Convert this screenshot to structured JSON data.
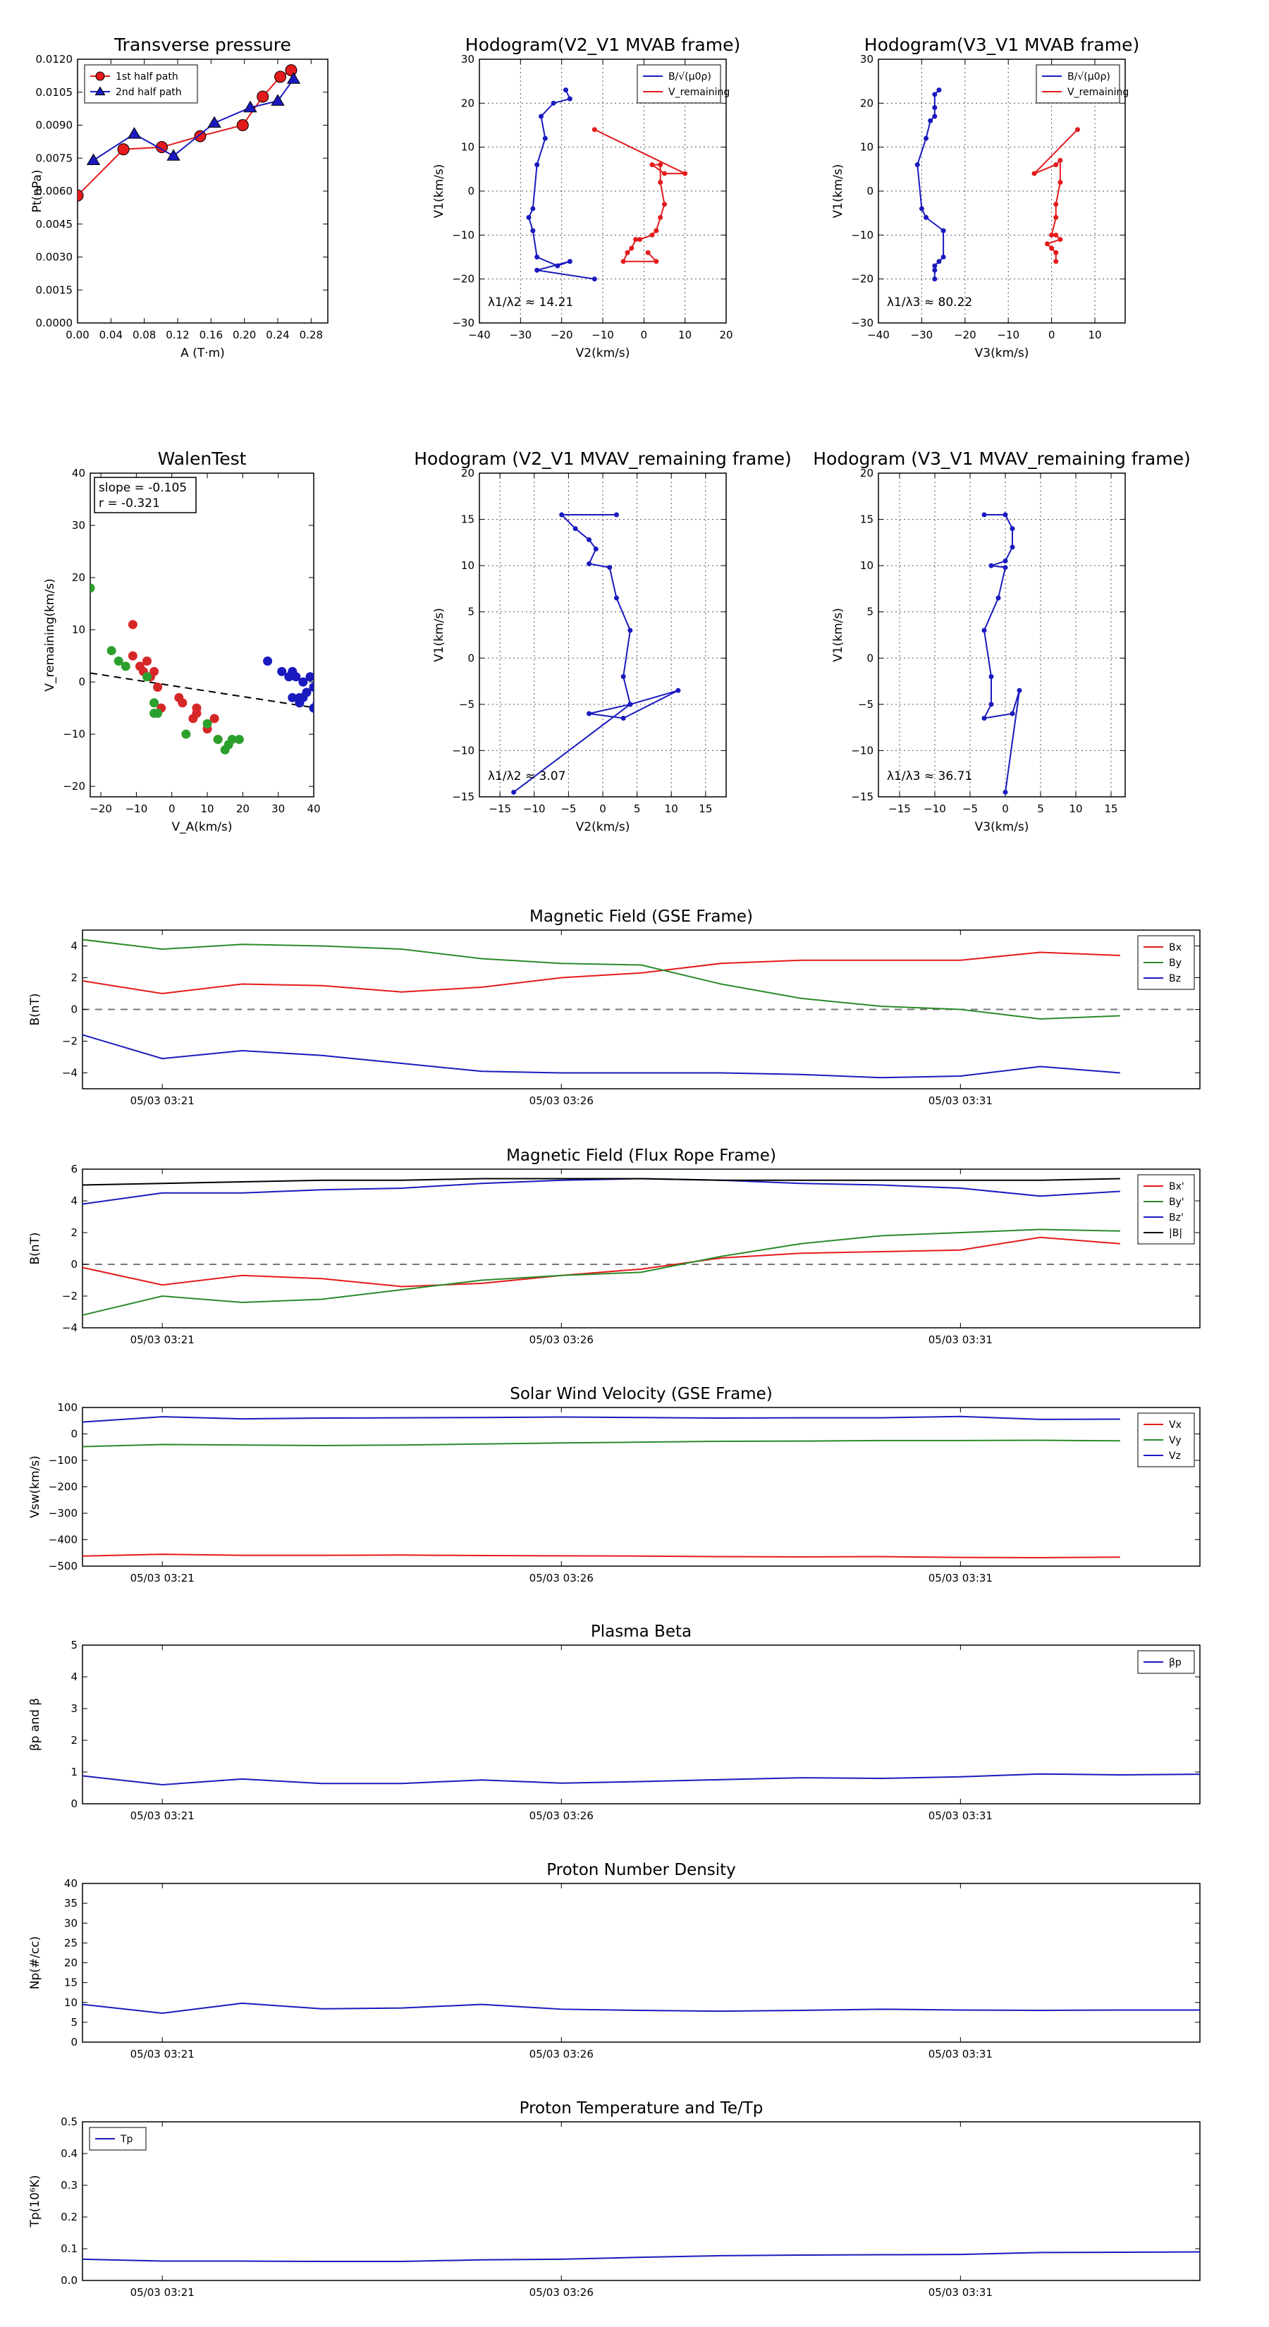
{
  "figure": {
    "time_ticks": [
      "05/03 03:21",
      "05/03 03:26",
      "05/03 03:31"
    ]
  },
  "chart_data": [
    {
      "id": "transverse-pressure",
      "type": "line",
      "title": "Transverse pressure",
      "xlabel": "A (T·m)",
      "ylabel": "Pt(nPa)",
      "xlim": [
        0,
        0.3
      ],
      "ylim": [
        0,
        0.012
      ],
      "xticks": [
        0.0,
        0.04,
        0.08,
        0.12,
        0.16,
        0.2,
        0.24,
        0.28
      ],
      "xtick_labels": [
        "0.00",
        "0.04",
        "0.08",
        "0.12",
        "0.16",
        "0.20",
        "0.24",
        "0.28"
      ],
      "yticks": [
        0,
        0.0015,
        0.003,
        0.0045,
        0.006,
        0.0075,
        0.009,
        0.0105,
        0.012
      ],
      "ytick_labels": [
        "0.0000",
        "0.0015",
        "0.0030",
        "0.0045",
        "0.0060",
        "0.0075",
        "0.0090",
        "0.0105",
        "0.0120"
      ],
      "legend": "top-left",
      "grid": false,
      "series": [
        {
          "name": "1st half path",
          "color": "#e41a1c",
          "marker": "circle",
          "x": [
            0.0,
            0.055,
            0.101,
            0.147,
            0.198,
            0.222,
            0.243,
            0.256
          ],
          "y": [
            0.0058,
            0.0079,
            0.008,
            0.0085,
            0.009,
            0.0103,
            0.0112,
            0.0115
          ]
        },
        {
          "name": "2nd half path",
          "color": "#1a1abf",
          "marker": "triangle",
          "x": [
            0.019,
            0.068,
            0.115,
            0.164,
            0.207,
            0.24,
            0.259
          ],
          "y": [
            0.0074,
            0.0086,
            0.0076,
            0.0091,
            0.0098,
            0.0101,
            0.0111
          ]
        }
      ]
    },
    {
      "id": "hodogram-v2v1-mvab",
      "type": "line",
      "title": "Hodogram(V2_V1 MVAB frame)",
      "xlabel": "V2(km/s)",
      "ylabel": "V1(km/s)",
      "xlim": [
        -40,
        20
      ],
      "ylim": [
        -30,
        30
      ],
      "xticks": [
        -40,
        -30,
        -20,
        -10,
        0,
        10,
        20
      ],
      "yticks": [
        -30,
        -20,
        -10,
        0,
        10,
        20,
        30
      ],
      "grid": true,
      "legend": "top-right",
      "annotation": "λ1/λ2 ≈ 14.21",
      "series": [
        {
          "name": "B/√(μ0ρ)",
          "color": "#1a1abf",
          "x": [
            -19,
            -18,
            -22,
            -25,
            -24,
            -26,
            -27,
            -28,
            -27,
            -26,
            -21,
            -18,
            -26,
            -12
          ],
          "y": [
            23,
            21,
            20,
            17,
            12,
            6,
            -4,
            -6,
            -9,
            -15,
            -17,
            -16,
            -18,
            -20
          ]
        },
        {
          "name": "V_remaining",
          "color": "#e41a1c",
          "x": [
            -12,
            10,
            5,
            2,
            4,
            4,
            5,
            4,
            3,
            2,
            -1,
            -2,
            -3,
            -4,
            -5,
            3,
            1
          ],
          "y": [
            14,
            4,
            4,
            6,
            6,
            2,
            -3,
            -6,
            -9,
            -10,
            -11,
            -11,
            -13,
            -14,
            -16,
            -16,
            -14
          ]
        }
      ]
    },
    {
      "id": "hodogram-v3v1-mvab",
      "type": "line",
      "title": "Hodogram(V3_V1 MVAB frame)",
      "xlabel": "V3(km/s)",
      "ylabel": "V1(km/s)",
      "xlim": [
        -40,
        17
      ],
      "ylim": [
        -30,
        30
      ],
      "xticks": [
        -40,
        -30,
        -20,
        -10,
        0,
        10
      ],
      "yticks": [
        -30,
        -20,
        -10,
        0,
        10,
        20,
        30
      ],
      "grid": true,
      "legend": "top-right",
      "annotation": "λ1/λ3 ≈ 80.22",
      "series": [
        {
          "name": "B/√(μ0ρ)",
          "color": "#1a1abf",
          "x": [
            -26,
            -27,
            -27,
            -27,
            -28,
            -29,
            -31,
            -30,
            -29,
            -25,
            -25,
            -26,
            -27,
            -27,
            -27
          ],
          "y": [
            23,
            22,
            19,
            17,
            16,
            12,
            6,
            -4,
            -6,
            -9,
            -15,
            -16,
            -17,
            -18,
            -20
          ]
        },
        {
          "name": "V_remaining",
          "color": "#e41a1c",
          "x": [
            6,
            -4,
            1,
            2,
            2,
            1,
            1,
            0,
            1,
            2,
            -1,
            0,
            1,
            1
          ],
          "y": [
            14,
            4,
            6,
            7,
            2,
            -3,
            -6,
            -10,
            -10,
            -11,
            -12,
            -13,
            -14,
            -16
          ]
        }
      ]
    },
    {
      "id": "walen-test",
      "type": "scatter",
      "title": "WalenTest",
      "xlabel": "V_A(km/s)",
      "ylabel": "V_remaining(km/s)",
      "xlim": [
        -23,
        40
      ],
      "ylim": [
        -22,
        40
      ],
      "xticks": [
        -20,
        -10,
        0,
        10,
        20,
        30,
        40
      ],
      "yticks": [
        -20,
        -10,
        0,
        10,
        20,
        30,
        40
      ],
      "grid": false,
      "annotations": [
        "slope = -0.105",
        "r = -0.321"
      ],
      "fit_line": {
        "slope": -0.105,
        "intercept": -0.7
      },
      "series": [
        {
          "color": "#d62728",
          "x": [
            -11,
            -11,
            -9,
            -8,
            -7,
            -6,
            -5,
            -4,
            -3,
            2,
            6,
            7,
            7,
            10,
            12,
            13,
            3
          ],
          "y": [
            11,
            5,
            3,
            2,
            4,
            1,
            2,
            -1,
            -5,
            -3,
            -7,
            -6,
            -5,
            -9,
            -7,
            -11,
            -4
          ]
        },
        {
          "color": "#2ca02c",
          "x": [
            -23,
            -17,
            -15,
            -13,
            -7,
            -5,
            -5,
            4,
            10,
            13,
            15,
            16,
            17,
            19,
            -4
          ],
          "y": [
            18,
            6,
            4,
            3,
            1,
            -4,
            -6,
            -10,
            -8,
            -11,
            -13,
            -12,
            -11,
            -11,
            -6
          ]
        },
        {
          "color": "#1a1abf",
          "x": [
            27,
            31,
            33,
            34,
            35,
            36,
            37,
            38,
            39,
            40,
            41,
            36,
            34,
            37,
            40
          ],
          "y": [
            4,
            2,
            1,
            2,
            1,
            -3,
            -3,
            -2,
            1,
            -1,
            -4,
            -4,
            -3,
            0,
            -5
          ]
        }
      ]
    },
    {
      "id": "hodogram-v2v1-mvav",
      "type": "line",
      "title": "Hodogram (V2_V1 MVAV_remaining frame)",
      "xlabel": "V2(km/s)",
      "ylabel": "V1(km/s)",
      "xlim": [
        -18,
        18
      ],
      "ylim": [
        -15,
        20
      ],
      "xticks": [
        -15,
        -10,
        -5,
        0,
        5,
        10,
        15
      ],
      "yticks": [
        -15,
        -10,
        -5,
        0,
        5,
        10,
        15,
        20
      ],
      "grid": true,
      "annotation": "λ1/λ2 ≈ 3.07",
      "series": [
        {
          "color": "#1a1abf",
          "x": [
            2,
            -6,
            -4,
            -2,
            -1,
            -2,
            1,
            2,
            4,
            3,
            4,
            -2,
            3,
            11,
            4,
            -13
          ],
          "y": [
            15.5,
            15.5,
            14,
            12.8,
            11.8,
            10.2,
            9.8,
            6.5,
            3,
            -2,
            -5,
            -6,
            -6.5,
            -3.5,
            -5,
            -14.5
          ]
        }
      ]
    },
    {
      "id": "hodogram-v3v1-mvav",
      "type": "line",
      "title": "Hodogram (V3_V1 MVAV_remaining frame)",
      "xlabel": "V3(km/s)",
      "ylabel": "V1(km/s)",
      "xlim": [
        -18,
        17
      ],
      "ylim": [
        -15,
        20
      ],
      "xticks": [
        -15,
        -10,
        -5,
        0,
        5,
        10,
        15
      ],
      "yticks": [
        -15,
        -10,
        -5,
        0,
        5,
        10,
        15,
        20
      ],
      "grid": true,
      "annotation": "λ1/λ3 ≈ 36.71",
      "series": [
        {
          "color": "#1a1abf",
          "x": [
            -3,
            0,
            1,
            1,
            0,
            -2,
            0,
            -1,
            -3,
            -2,
            -2,
            -3,
            1,
            2,
            0
          ],
          "y": [
            15.5,
            15.5,
            14,
            12,
            10.5,
            10,
            9.8,
            6.5,
            3,
            -2,
            -5,
            -6.5,
            -6,
            -3.5,
            -14.5
          ]
        }
      ]
    },
    {
      "id": "mag-field-gse",
      "type": "line",
      "title": "Magnetic Field (GSE Frame)",
      "ylabel": "B(nT)",
      "xlabel": "",
      "x": [
        0,
        1,
        2,
        3,
        4,
        5,
        6,
        7,
        8,
        9,
        10,
        11,
        12,
        13
      ],
      "ylim": [
        -5,
        5
      ],
      "yticks": [
        -4,
        -2,
        0,
        2,
        4
      ],
      "xlim": [
        0,
        14
      ],
      "time_tick_positions": [
        1,
        6,
        11
      ],
      "zero_line": true,
      "legend": "top-right",
      "series": [
        {
          "name": "Bx",
          "color": "#e41a1c",
          "values": [
            1.8,
            1.0,
            1.6,
            1.5,
            1.1,
            1.4,
            2.0,
            2.3,
            2.9,
            3.1,
            3.1,
            3.1,
            3.6,
            3.4
          ]
        },
        {
          "name": "By",
          "color": "#2a8a2a",
          "values": [
            4.4,
            3.8,
            4.1,
            4.0,
            3.8,
            3.2,
            2.9,
            2.8,
            1.6,
            0.7,
            0.2,
            0.0,
            -0.6,
            -0.4
          ]
        },
        {
          "name": "Bz",
          "color": "#1a1abf",
          "values": [
            -1.6,
            -3.1,
            -2.6,
            -2.9,
            -3.4,
            -3.9,
            -4.0,
            -4.0,
            -4.0,
            -4.1,
            -4.3,
            -4.2,
            -3.6,
            -4.0
          ]
        }
      ]
    },
    {
      "id": "mag-field-flux-rope",
      "type": "line",
      "title": "Magnetic Field (Flux Rope Frame)",
      "ylabel": "B(nT)",
      "xlabel": "",
      "x": [
        0,
        1,
        2,
        3,
        4,
        5,
        6,
        7,
        8,
        9,
        10,
        11,
        12,
        13
      ],
      "ylim": [
        -4,
        6
      ],
      "yticks": [
        -4,
        -2,
        0,
        2,
        4,
        6
      ],
      "xlim": [
        0,
        14
      ],
      "time_tick_positions": [
        1,
        6,
        11
      ],
      "zero_line": true,
      "legend": "top-right",
      "series": [
        {
          "name": "Bx'",
          "color": "#e41a1c",
          "values": [
            -0.2,
            -1.3,
            -0.7,
            -0.9,
            -1.4,
            -1.2,
            -0.7,
            -0.3,
            0.4,
            0.7,
            0.8,
            0.9,
            1.7,
            1.3
          ]
        },
        {
          "name": "By'",
          "color": "#2a8a2a",
          "values": [
            -3.2,
            -2.0,
            -2.4,
            -2.2,
            -1.6,
            -1.0,
            -0.7,
            -0.5,
            0.5,
            1.3,
            1.8,
            2.0,
            2.2,
            2.1
          ]
        },
        {
          "name": "Bz'",
          "color": "#1a1abf",
          "values": [
            3.8,
            4.5,
            4.5,
            4.7,
            4.8,
            5.1,
            5.3,
            5.4,
            5.3,
            5.1,
            5.0,
            4.8,
            4.3,
            4.6
          ]
        },
        {
          "name": "|B|",
          "color": "#000000",
          "values": [
            5.0,
            5.1,
            5.2,
            5.3,
            5.3,
            5.4,
            5.4,
            5.4,
            5.3,
            5.3,
            5.3,
            5.3,
            5.3,
            5.4
          ]
        }
      ]
    },
    {
      "id": "solar-wind-velocity",
      "type": "line",
      "title": "Solar Wind Velocity (GSE Frame)",
      "ylabel": "Vsw(km/s)",
      "xlabel": "",
      "x": [
        0,
        1,
        2,
        3,
        4,
        5,
        6,
        7,
        8,
        9,
        10,
        11,
        12,
        13
      ],
      "ylim": [
        -500,
        100
      ],
      "yticks": [
        -500,
        -400,
        -300,
        -200,
        -100,
        0,
        100
      ],
      "ytick_labels": [
        "−500",
        "−400",
        "−300",
        "−200",
        "−100",
        "0",
        "100"
      ],
      "xlim": [
        0,
        14
      ],
      "time_tick_positions": [
        1,
        6,
        11
      ],
      "legend": "top-right",
      "series": [
        {
          "name": "Vx",
          "color": "#e41a1c",
          "values": [
            -462,
            -455,
            -459,
            -459,
            -458,
            -460,
            -461,
            -462,
            -464,
            -465,
            -464,
            -467,
            -468,
            -466
          ]
        },
        {
          "name": "Vy",
          "color": "#2a8a2a",
          "values": [
            -48,
            -40,
            -42,
            -44,
            -42,
            -38,
            -34,
            -31,
            -28,
            -27,
            -25,
            -25,
            -24,
            -26
          ]
        },
        {
          "name": "Vz",
          "color": "#1a1abf",
          "values": [
            45,
            65,
            57,
            60,
            61,
            62,
            64,
            62,
            60,
            61,
            61,
            66,
            55,
            56
          ]
        }
      ]
    },
    {
      "id": "plasma-beta",
      "type": "line",
      "title": "Plasma Beta",
      "ylabel": "βp and β",
      "xlabel": "",
      "x": [
        0,
        1,
        2,
        3,
        4,
        5,
        6,
        7,
        8,
        9,
        10,
        11,
        12,
        13,
        14
      ],
      "ylim": [
        0,
        5
      ],
      "yticks": [
        0,
        1,
        2,
        3,
        4,
        5
      ],
      "xlim": [
        0,
        14
      ],
      "time_tick_positions": [
        1,
        6,
        11
      ],
      "legend": "top-right",
      "series": [
        {
          "name": "βp",
          "color": "#1a1abf",
          "values": [
            0.88,
            0.6,
            0.78,
            0.64,
            0.64,
            0.75,
            0.65,
            0.7,
            0.76,
            0.82,
            0.8,
            0.85,
            0.94,
            0.91,
            0.93
          ]
        }
      ]
    },
    {
      "id": "proton-density",
      "type": "line",
      "title": "Proton Number Density",
      "ylabel": "Np(#/cc)",
      "xlabel": "",
      "x": [
        0,
        1,
        2,
        3,
        4,
        5,
        6,
        7,
        8,
        9,
        10,
        11,
        12,
        13,
        14
      ],
      "ylim": [
        0,
        40
      ],
      "yticks": [
        0,
        5,
        10,
        15,
        20,
        25,
        30,
        35,
        40
      ],
      "xlim": [
        0,
        14
      ],
      "time_tick_positions": [
        1,
        6,
        11
      ],
      "series": [
        {
          "name": "Np",
          "color": "#1a1abf",
          "values": [
            9.5,
            7.3,
            9.8,
            8.4,
            8.6,
            9.5,
            8.3,
            8.0,
            7.8,
            8.0,
            8.3,
            8.1,
            8.0,
            8.1,
            8.1
          ]
        }
      ]
    },
    {
      "id": "proton-temperature",
      "type": "line",
      "title": "Proton Temperature and Te/Tp",
      "ylabel": "Tp(10⁶K)",
      "xlabel": "",
      "x": [
        0,
        1,
        2,
        3,
        4,
        5,
        6,
        7,
        8,
        9,
        10,
        11,
        12,
        13,
        14
      ],
      "ylim": [
        0,
        0.5
      ],
      "yticks": [
        0,
        0.1,
        0.2,
        0.3,
        0.4,
        0.5
      ],
      "ytick_labels": [
        "0.0",
        "0.1",
        "0.2",
        "0.3",
        "0.4",
        "0.5"
      ],
      "xlim": [
        0,
        14
      ],
      "time_tick_positions": [
        1,
        6,
        11
      ],
      "legend": "top-left",
      "series": [
        {
          "name": "Tp",
          "color": "#1a1abf",
          "values": [
            0.067,
            0.061,
            0.061,
            0.06,
            0.06,
            0.065,
            0.067,
            0.073,
            0.078,
            0.08,
            0.081,
            0.082,
            0.088,
            0.089,
            0.09
          ]
        }
      ]
    }
  ]
}
